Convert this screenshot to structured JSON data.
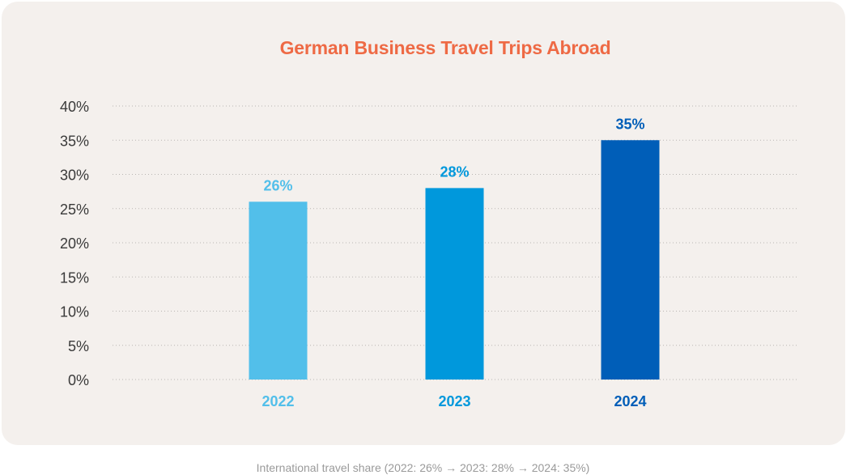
{
  "chart_data": {
    "type": "bar",
    "title": "German Business Travel Trips Abroad",
    "categories": [
      "2022",
      "2023",
      "2024"
    ],
    "values": [
      26,
      28,
      35
    ],
    "value_labels": [
      "26%",
      "28%",
      "35%"
    ],
    "y_ticks": [
      "0%",
      "5%",
      "10%",
      "15%",
      "20%",
      "25%",
      "30%",
      "35%",
      "40%"
    ],
    "ylim": [
      0,
      40
    ],
    "grid": true,
    "colors": [
      "#52bfea",
      "#0098dc",
      "#005eb8"
    ]
  },
  "caption": "International travel share (2022: 26% → 2023: 28% → 2024: 35%)"
}
